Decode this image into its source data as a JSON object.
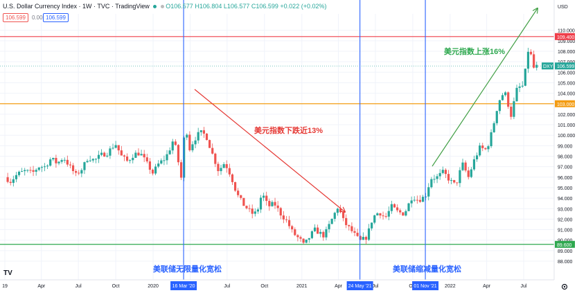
{
  "header": {
    "symbol": "U.S. Dollar Currency Index · 1W · TVC · TradingView",
    "ohlc": "O106.577 H106.804 L106.577 C106.599 +0.022 (+0.02%)",
    "bid": "106.599",
    "spread": "0.000",
    "ask": "106.599"
  },
  "currency_label": "USD",
  "watermark": "TV",
  "chart_data": {
    "type": "candlestick",
    "ylim": [
      88,
      111
    ],
    "y_ticks": [
      88,
      89,
      90,
      91,
      92,
      93,
      94,
      95,
      96,
      97,
      98,
      99,
      100,
      101,
      102,
      103,
      104,
      105,
      106,
      107,
      108,
      109,
      110
    ],
    "x_ticks": [
      {
        "label": "19",
        "date": "2019-01-01"
      },
      {
        "label": "Apr",
        "date": "2019-04-01"
      },
      {
        "label": "Jul",
        "date": "2019-07-01"
      },
      {
        "label": "Oct",
        "date": "2019-10-01"
      },
      {
        "label": "2020",
        "date": "2020-01-01"
      },
      {
        "label": "Apr",
        "date": "2020-04-01"
      },
      {
        "label": "Jul",
        "date": "2020-07-01"
      },
      {
        "label": "Oct",
        "date": "2020-10-01"
      },
      {
        "label": "2021",
        "date": "2021-01-01"
      },
      {
        "label": "Apr",
        "date": "2021-04-01"
      },
      {
        "label": "Jul",
        "date": "2021-07-01"
      },
      {
        "label": "Oct",
        "date": "2021-10-01"
      },
      {
        "label": "2022",
        "date": "2022-01-01"
      },
      {
        "label": "Apr",
        "date": "2022-04-01"
      },
      {
        "label": "Jul",
        "date": "2022-07-01"
      }
    ],
    "close_path": [
      [
        "2019-01-01",
        96.0
      ],
      [
        "2019-01-15",
        95.6
      ],
      [
        "2019-02-01",
        96.3
      ],
      [
        "2019-02-20",
        96.6
      ],
      [
        "2019-03-10",
        96.4
      ],
      [
        "2019-03-25",
        97.0
      ],
      [
        "2019-04-10",
        97.0
      ],
      [
        "2019-04-25",
        97.8
      ],
      [
        "2019-05-10",
        97.3
      ],
      [
        "2019-05-25",
        97.9
      ],
      [
        "2019-06-10",
        97.0
      ],
      [
        "2019-06-25",
        96.2
      ],
      [
        "2019-07-10",
        96.8
      ],
      [
        "2019-07-25",
        97.9
      ],
      [
        "2019-08-10",
        97.6
      ],
      [
        "2019-08-25",
        98.1
      ],
      [
        "2019-09-10",
        98.3
      ],
      [
        "2019-09-30",
        99.2
      ],
      [
        "2019-10-15",
        98.0
      ],
      [
        "2019-10-30",
        97.5
      ],
      [
        "2019-11-15",
        98.2
      ],
      [
        "2019-11-30",
        98.3
      ],
      [
        "2019-12-15",
        97.4
      ],
      [
        "2019-12-31",
        96.4
      ],
      [
        "2020-01-15",
        97.3
      ],
      [
        "2020-01-31",
        97.8
      ],
      [
        "2020-02-10",
        98.6
      ],
      [
        "2020-02-20",
        99.6
      ],
      [
        "2020-03-01",
        98.1
      ],
      [
        "2020-03-09",
        95.5
      ],
      [
        "2020-03-16",
        98.6
      ],
      [
        "2020-03-20",
        102.8
      ],
      [
        "2020-03-27",
        98.4
      ],
      [
        "2020-04-10",
        99.5
      ],
      [
        "2020-04-25",
        100.3
      ],
      [
        "2020-05-10",
        100.0
      ],
      [
        "2020-05-25",
        98.3
      ],
      [
        "2020-06-10",
        96.6
      ],
      [
        "2020-06-25",
        97.4
      ],
      [
        "2020-07-10",
        96.2
      ],
      [
        "2020-07-25",
        94.4
      ],
      [
        "2020-08-10",
        93.4
      ],
      [
        "2020-08-25",
        92.8
      ],
      [
        "2020-09-05",
        92.4
      ],
      [
        "2020-09-15",
        93.0
      ],
      [
        "2020-09-25",
        94.5
      ],
      [
        "2020-10-10",
        93.2
      ],
      [
        "2020-10-25",
        93.5
      ],
      [
        "2020-11-10",
        92.5
      ],
      [
        "2020-11-25",
        91.8
      ],
      [
        "2020-12-10",
        90.7
      ],
      [
        "2020-12-31",
        89.9
      ],
      [
        "2021-01-06",
        89.5
      ],
      [
        "2021-01-20",
        90.3
      ],
      [
        "2021-02-01",
        91.0
      ],
      [
        "2021-02-25",
        90.4
      ],
      [
        "2021-03-15",
        91.9
      ],
      [
        "2021-03-31",
        93.2
      ],
      [
        "2021-04-15",
        91.7
      ],
      [
        "2021-05-01",
        91.0
      ],
      [
        "2021-05-24",
        89.9
      ],
      [
        "2021-06-10",
        90.3
      ],
      [
        "2021-06-25",
        92.2
      ],
      [
        "2021-07-10",
        92.7
      ],
      [
        "2021-07-25",
        92.1
      ],
      [
        "2021-08-10",
        93.2
      ],
      [
        "2021-08-25",
        92.7
      ],
      [
        "2021-09-10",
        92.5
      ],
      [
        "2021-09-30",
        94.2
      ],
      [
        "2021-10-15",
        93.8
      ],
      [
        "2021-11-01",
        94.2
      ],
      [
        "2021-11-15",
        95.9
      ],
      [
        "2021-11-30",
        96.0
      ],
      [
        "2021-12-15",
        96.5
      ],
      [
        "2021-12-31",
        95.7
      ],
      [
        "2022-01-15",
        95.2
      ],
      [
        "2022-01-31",
        97.3
      ],
      [
        "2022-02-15",
        96.0
      ],
      [
        "2022-03-01",
        97.6
      ],
      [
        "2022-03-15",
        98.8
      ],
      [
        "2022-04-01",
        98.6
      ],
      [
        "2022-04-15",
        100.5
      ],
      [
        "2022-04-30",
        103.2
      ],
      [
        "2022-05-15",
        104.2
      ],
      [
        "2022-05-31",
        101.9
      ],
      [
        "2022-06-15",
        104.5
      ],
      [
        "2022-06-30",
        104.7
      ],
      [
        "2022-07-14",
        108.6
      ],
      [
        "2022-07-25",
        106.4
      ],
      [
        "2022-08-05",
        106.6
      ]
    ],
    "horizontal_levels": [
      {
        "value": 109.4,
        "label": "109.400",
        "color": "#ef3e4a"
      },
      {
        "value": 103.0,
        "label": "103.000",
        "color": "#f39c12"
      },
      {
        "value": 89.6,
        "label": "89.600",
        "color": "#2ea84f"
      }
    ],
    "last_price": {
      "value": 106.599,
      "tag": "DXY",
      "label": "106.599",
      "color": "#26a69a"
    },
    "vertical_lines": [
      {
        "date": "2020-03-16",
        "label": "16 Mar '20"
      },
      {
        "date": "2021-05-24",
        "label": "24 May '21"
      },
      {
        "date": "2021-11-01",
        "label": "01 Nov '21"
      }
    ],
    "annotations": [
      {
        "text": "美联储无限量化宽松",
        "color": "#2962ff"
      },
      {
        "text": "美元指数下跌近13%",
        "color": "#e53935"
      },
      {
        "text": "美联储缩减量化宽松",
        "color": "#2962ff"
      },
      {
        "text": "美元指数上涨16%",
        "color": "#2ea84f"
      }
    ],
    "colors": {
      "up": "#26a69a",
      "down": "#ef5350",
      "vertical": "#2962ff",
      "date_tag": "#2962ff"
    }
  }
}
